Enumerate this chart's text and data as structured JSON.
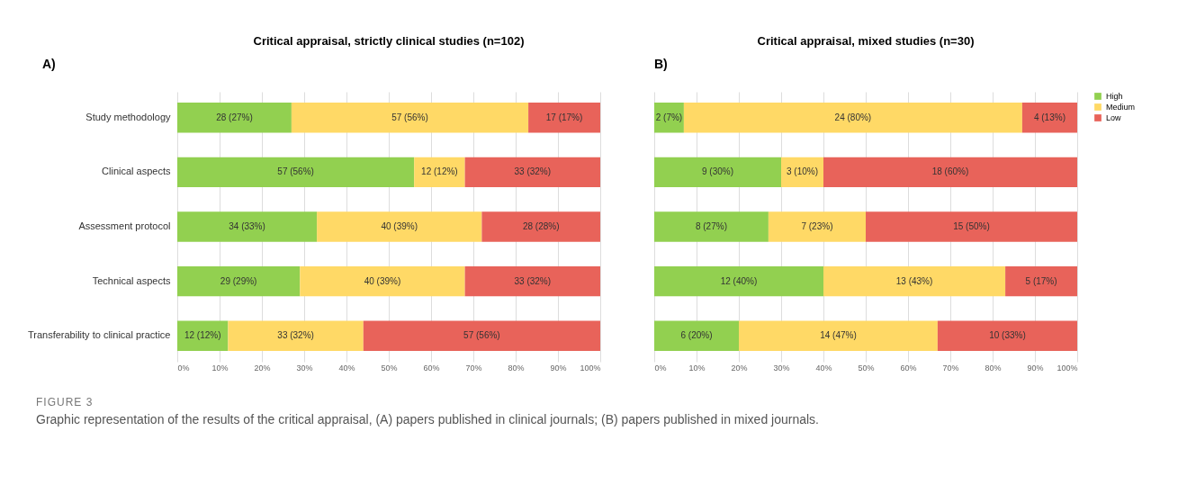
{
  "chart_data": [
    {
      "type": "bar",
      "orientation": "horizontal",
      "stacked": true,
      "title": "Critical appraisal, strictly clinical studies (n=102)",
      "annotations": [
        "A)"
      ],
      "categories": [
        "Study methodology",
        "Clinical aspects",
        "Assessment protocol",
        "Technical aspects",
        "Transferability to clinical practice"
      ],
      "series": [
        {
          "name": "High",
          "color": "#92d050",
          "values": [
            27,
            56,
            33,
            29,
            12
          ],
          "value_labels": [
            "28 (27%)",
            "57 (56%)",
            "34 (33%)",
            "29 (29%)",
            "12 (12%)"
          ]
        },
        {
          "name": "Medium",
          "color": "#ffd966",
          "values": [
            56,
            12,
            39,
            39,
            32
          ],
          "value_labels": [
            "57 (56%)",
            "12 (12%)",
            "40 (39%)",
            "40 (39%)",
            "33 (32%)"
          ]
        },
        {
          "name": "Low",
          "color": "#e8635a",
          "values": [
            17,
            32,
            28,
            32,
            56
          ],
          "value_labels": [
            "17 (17%)",
            "33 (32%)",
            "28 (28%)",
            "33 (32%)",
            "57 (56%)"
          ]
        }
      ],
      "xlim": [
        0,
        100
      ],
      "xticks": [
        {
          "value": 0,
          "label": "0%"
        },
        {
          "value": 10,
          "label": "10%"
        },
        {
          "value": 20,
          "label": "20%"
        },
        {
          "value": 30,
          "label": "30%"
        },
        {
          "value": 40,
          "label": "40%"
        },
        {
          "value": 50,
          "label": "50%"
        },
        {
          "value": 60,
          "label": "60%"
        },
        {
          "value": 70,
          "label": "70%"
        },
        {
          "value": 80,
          "label": "80%"
        },
        {
          "value": 90,
          "label": "90%"
        },
        {
          "value": 100,
          "label": "100%"
        }
      ],
      "grid": "x",
      "legend": "right"
    },
    {
      "type": "bar",
      "orientation": "horizontal",
      "stacked": true,
      "title": "Critical appraisal, mixed studies (n=30)",
      "annotations": [
        "B)",
        "FIGURE 3",
        "Graphic representation of the results of the critical appraisal, (A) papers published in clinical journals; (B) papers published in mixed journals."
      ],
      "categories": [
        null,
        null,
        null,
        null,
        null
      ],
      "series": [
        {
          "name": "High",
          "color": "#92d050",
          "values": [
            7,
            30,
            27,
            40,
            20
          ],
          "value_labels": [
            "2 (7%)",
            "9 (30%)",
            "8 (27%)",
            "12 (40%)",
            "6 (20%)"
          ]
        },
        {
          "name": "Medium",
          "color": "#ffd966",
          "values": [
            80,
            10,
            23,
            43,
            47
          ],
          "value_labels": [
            "24 (80%)",
            "3 (10%)",
            "7 (23%)",
            "13 (43%)",
            "14 (47%)"
          ]
        },
        {
          "name": "Low",
          "color": "#e8635a",
          "values": [
            13,
            60,
            50,
            17,
            33
          ],
          "value_labels": [
            "4 (13%)",
            "18 (60%)",
            "15 (50%)",
            "5 (17%)",
            "10 (33%)"
          ]
        }
      ],
      "xlim": [
        0,
        100
      ],
      "xticks": [
        {
          "value": 0,
          "label": "0%"
        },
        {
          "value": 10,
          "label": "10%"
        },
        {
          "value": 20,
          "label": "20%"
        },
        {
          "value": 30,
          "label": "30%"
        },
        {
          "value": 40,
          "label": "40%"
        },
        {
          "value": 50,
          "label": "50%"
        },
        {
          "value": 60,
          "label": "60%"
        },
        {
          "value": 70,
          "label": "70%"
        },
        {
          "value": 80,
          "label": "80%"
        },
        {
          "value": 90,
          "label": "90%"
        },
        {
          "value": 100,
          "label": "100%"
        }
      ],
      "grid": "x",
      "legend": "right",
      "tick_labels": "x"
    }
  ]
}
